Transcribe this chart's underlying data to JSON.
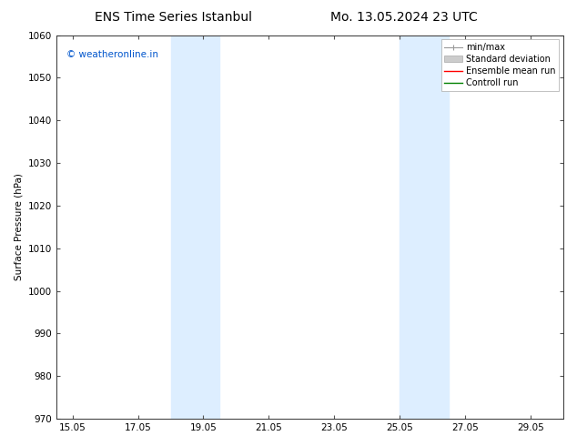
{
  "title_left": "ENS Time Series Istanbul",
  "title_right": "Mo. 13.05.2024 23 UTC",
  "ylabel": "Surface Pressure (hPa)",
  "ylim": [
    970,
    1060
  ],
  "yticks": [
    970,
    980,
    990,
    1000,
    1010,
    1020,
    1030,
    1040,
    1050,
    1060
  ],
  "xlim": [
    14.5,
    30.0
  ],
  "xtick_labels": [
    "15.05",
    "17.05",
    "19.05",
    "21.05",
    "23.05",
    "25.05",
    "27.05",
    "29.05"
  ],
  "xtick_positions": [
    15.0,
    17.0,
    19.0,
    21.0,
    23.0,
    25.0,
    27.0,
    29.0
  ],
  "shaded_bands": [
    {
      "x_start": 18.0,
      "x_end": 19.5,
      "color": "#ddeeff"
    },
    {
      "x_start": 25.0,
      "x_end": 26.5,
      "color": "#ddeeff"
    }
  ],
  "watermark": "© weatheronline.in",
  "watermark_color": "#0055cc",
  "bg_color": "#ffffff",
  "font_size": 7.5,
  "title_font_size": 10
}
